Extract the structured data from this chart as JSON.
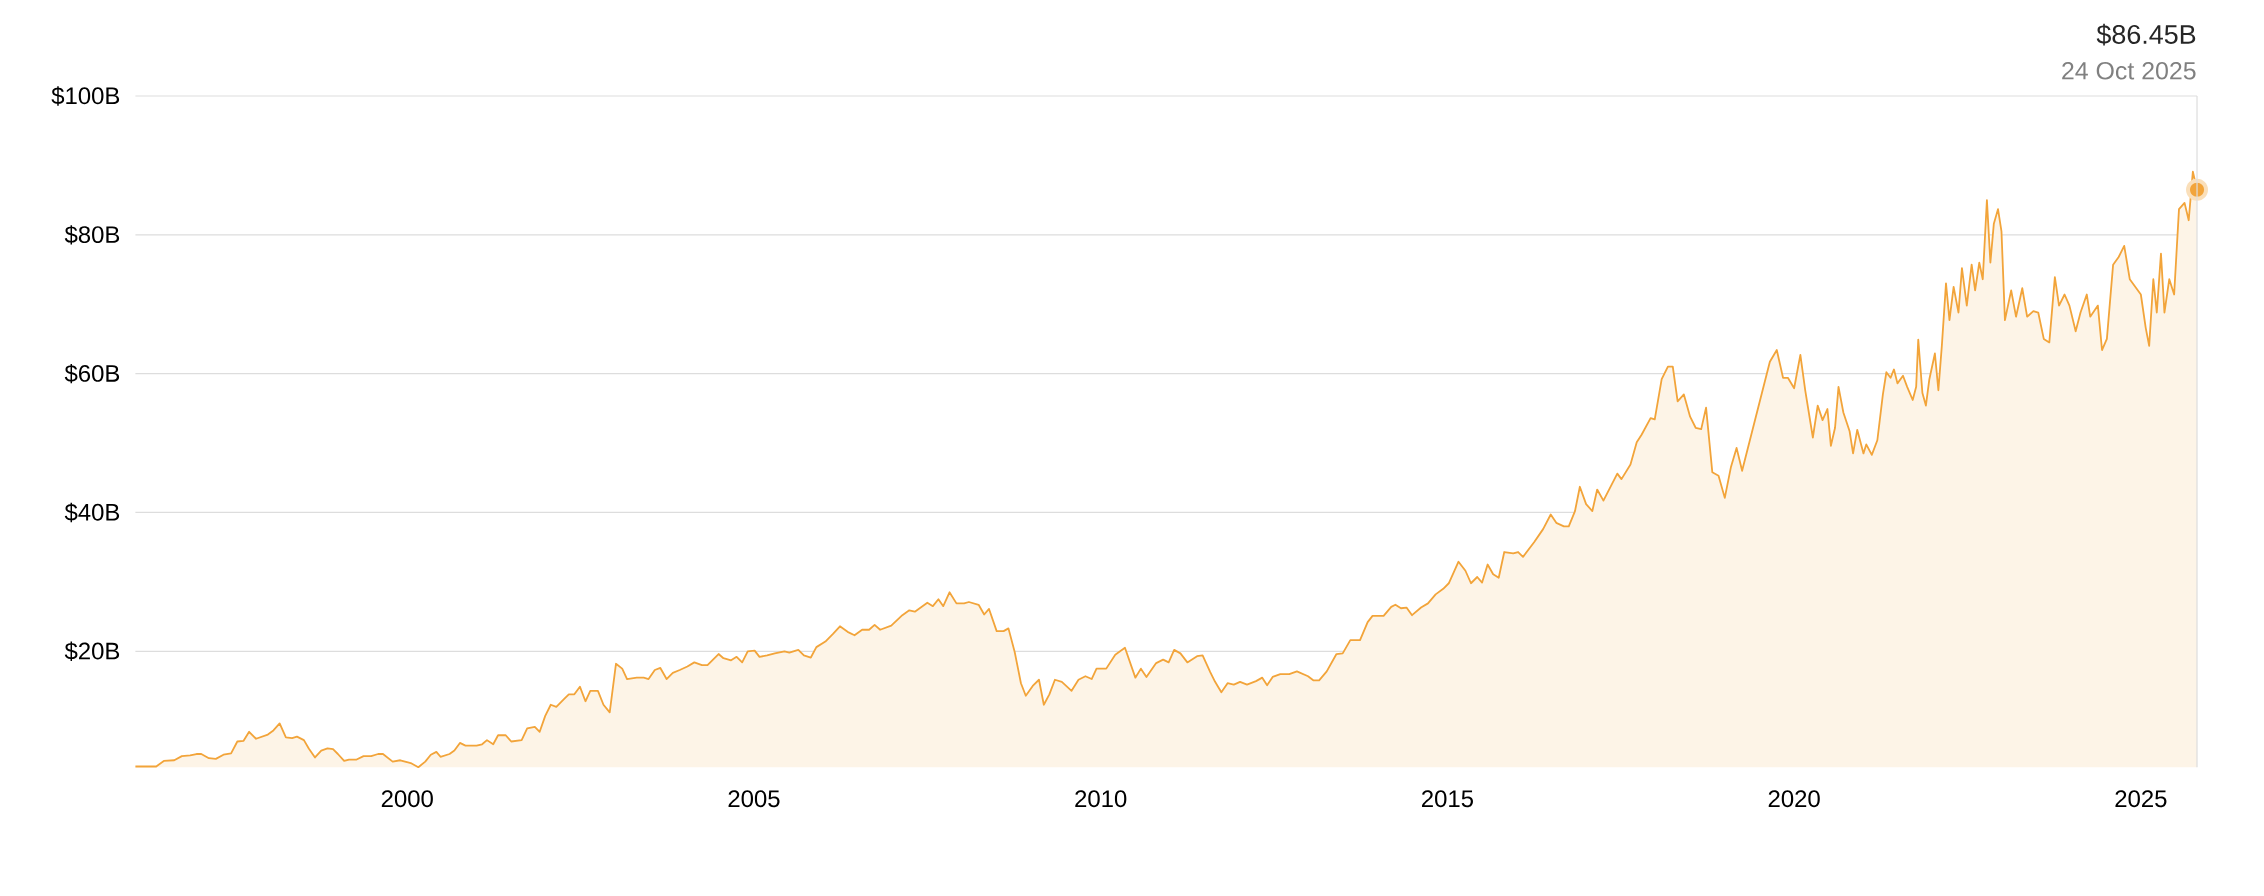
{
  "chart_data": {
    "type": "area",
    "color": "#f2a43a",
    "x": [
      1996.08,
      1996.38,
      1996.49,
      1996.64,
      1996.75,
      1996.87,
      1996.96,
      1997.03,
      1997.14,
      1997.24,
      1997.35,
      1997.46,
      1997.55,
      1997.64,
      1997.72,
      1997.82,
      1997.99,
      1998.07,
      1998.16,
      1998.25,
      1998.34,
      1998.41,
      1998.51,
      1998.58,
      1998.67,
      1998.76,
      1998.85,
      1998.93,
      1999.0,
      1999.09,
      1999.16,
      1999.27,
      1999.37,
      1999.48,
      1999.58,
      1999.65,
      1999.79,
      1999.9,
      2000.05,
      2000.16,
      2000.26,
      2000.34,
      2000.42,
      2000.48,
      2000.61,
      2000.68,
      2000.76,
      2000.84,
      2001.0,
      2001.08,
      2001.15,
      2001.24,
      2001.31,
      2001.42,
      2001.5,
      2001.65,
      2001.73,
      2001.84,
      2001.91,
      2001.99,
      2002.07,
      2002.15,
      2002.26,
      2002.33,
      2002.41,
      2002.49,
      2002.57,
      2002.64,
      2002.75,
      2002.83,
      2002.92,
      2003.01,
      2003.1,
      2003.17,
      2003.31,
      2003.41,
      2003.48,
      2003.57,
      2003.65,
      2003.74,
      2003.83,
      2003.93,
      2004.04,
      2004.14,
      2004.25,
      2004.33,
      2004.41,
      2004.49,
      2004.56,
      2004.67,
      2004.75,
      2004.83,
      2004.91,
      2005.01,
      2005.08,
      2005.19,
      2005.3,
      2005.44,
      2005.51,
      2005.64,
      2005.72,
      2005.82,
      2005.9,
      2006.03,
      2006.14,
      2006.24,
      2006.35,
      2006.45,
      2006.56,
      2006.66,
      2006.74,
      2006.82,
      2006.98,
      2007.14,
      2007.24,
      2007.32,
      2007.5,
      2007.58,
      2007.66,
      2007.73,
      2007.82,
      2007.92,
      2008.03,
      2008.1,
      2008.24,
      2008.32,
      2008.39,
      2008.5,
      2008.6,
      2008.67,
      2008.76,
      2008.85,
      2008.92,
      2009.02,
      2009.11,
      2009.18,
      2009.26,
      2009.34,
      2009.44,
      2009.58,
      2009.68,
      2009.78,
      2009.87,
      2009.94,
      2010.08,
      2010.21,
      2010.35,
      2010.5,
      2010.58,
      2010.66,
      2010.8,
      2010.9,
      2010.98,
      2011.06,
      2011.15,
      2011.25,
      2011.39,
      2011.47,
      2011.58,
      2011.65,
      2011.74,
      2011.83,
      2011.92,
      2012.01,
      2012.11,
      2012.24,
      2012.33,
      2012.4,
      2012.48,
      2012.59,
      2012.72,
      2012.83,
      2012.99,
      2013.07,
      2013.15,
      2013.26,
      2013.4,
      2013.49,
      2013.6,
      2013.74,
      2013.85,
      2013.92,
      2014.08,
      2014.19,
      2014.25,
      2014.33,
      2014.41,
      2014.49,
      2014.62,
      2014.72,
      2014.83,
      2014.94,
      2015.02,
      2015.16,
      2015.26,
      2015.34,
      2015.43,
      2015.5,
      2015.58,
      2015.66,
      2015.74,
      2015.82,
      2015.95,
      2016.02,
      2016.09,
      2016.25,
      2016.38,
      2016.49,
      2016.57,
      2016.68,
      2016.75,
      2016.84,
      2016.91,
      2017.0,
      2017.09,
      2017.16,
      2017.25,
      2017.45,
      2017.51,
      2017.64,
      2017.73,
      2017.8,
      2017.93,
      2017.99,
      2018.09,
      2018.18,
      2018.25,
      2018.32,
      2018.41,
      2018.5,
      2018.58,
      2018.66,
      2018.73,
      2018.82,
      2018.91,
      2019.0,
      2019.09,
      2019.17,
      2019.25,
      2019.65,
      2019.75,
      2019.84,
      2019.91,
      2020.0,
      2020.09,
      2020.16,
      2020.27,
      2020.34,
      2020.41,
      2020.48,
      2020.53,
      2020.59,
      2020.64,
      2020.71,
      2020.8,
      2020.85,
      2020.91,
      2021.0,
      2021.04,
      2021.12,
      2021.2,
      2021.28,
      2021.33,
      2021.39,
      2021.44,
      2021.49,
      2021.57,
      2021.63,
      2021.71,
      2021.76,
      2021.79,
      2021.85,
      2021.9,
      2021.95,
      2022.03,
      2022.08,
      2022.13,
      2022.19,
      2022.24,
      2022.3,
      2022.37,
      2022.42,
      2022.49,
      2022.56,
      2022.61,
      2022.67,
      2022.72,
      2022.78,
      2022.83,
      2022.88,
      2022.94,
      2022.99,
      2023.04,
      2023.13,
      2023.2,
      2023.29,
      2023.36,
      2023.45,
      2023.52,
      2023.6,
      2023.68,
      2023.76,
      2023.82,
      2023.9,
      2023.97,
      2024.06,
      2024.13,
      2024.22,
      2024.27,
      2024.38,
      2024.44,
      2024.51,
      2024.6,
      2024.68,
      2024.76,
      2024.84,
      2025.0,
      2025.07,
      2025.12,
      2025.18,
      2025.23,
      2025.29,
      2025.34,
      2025.41,
      2025.48,
      2025.55,
      2025.63,
      2025.69,
      2025.75,
      2025.81
    ],
    "values": [
      3.4,
      3.4,
      4.2,
      4.3,
      4.9,
      5.0,
      5.2,
      5.2,
      4.6,
      4.5,
      5.1,
      5.3,
      7.0,
      7.1,
      8.4,
      7.4,
      8.0,
      8.6,
      9.6,
      7.6,
      7.5,
      7.7,
      7.2,
      6.0,
      4.7,
      5.7,
      6.0,
      5.9,
      5.2,
      4.2,
      4.4,
      4.4,
      4.9,
      4.9,
      5.2,
      5.2,
      4.1,
      4.3,
      3.9,
      3.3,
      4.1,
      5.1,
      5.5,
      4.8,
      5.2,
      5.7,
      6.8,
      6.4,
      6.4,
      6.6,
      7.2,
      6.6,
      7.9,
      7.9,
      7.0,
      7.2,
      8.9,
      9.1,
      8.4,
      10.7,
      12.3,
      12.0,
      13.1,
      13.8,
      13.8,
      14.9,
      12.8,
      14.3,
      14.3,
      12.3,
      11.2,
      18.2,
      17.5,
      16.0,
      16.2,
      16.2,
      16.0,
      17.3,
      17.6,
      16.0,
      16.9,
      17.3,
      17.8,
      18.4,
      18.0,
      18.0,
      18.8,
      19.6,
      19.0,
      18.7,
      19.2,
      18.4,
      20.0,
      20.1,
      19.2,
      19.4,
      19.7,
      20.0,
      19.8,
      20.2,
      19.4,
      19.1,
      20.6,
      21.4,
      22.5,
      23.6,
      22.8,
      22.3,
      23.1,
      23.1,
      23.8,
      23.1,
      23.7,
      25.2,
      25.9,
      25.7,
      27.0,
      26.5,
      27.5,
      26.5,
      28.5,
      26.9,
      26.9,
      27.1,
      26.7,
      25.3,
      26.1,
      22.9,
      22.9,
      23.3,
      19.9,
      15.4,
      13.6,
      15.0,
      15.9,
      12.3,
      13.8,
      15.9,
      15.6,
      14.3,
      15.9,
      16.4,
      16.0,
      17.5,
      17.5,
      19.5,
      20.5,
      16.2,
      17.5,
      16.3,
      18.3,
      18.8,
      18.4,
      20.2,
      19.7,
      18.4,
      19.3,
      19.4,
      17.0,
      15.6,
      14.1,
      15.4,
      15.2,
      15.6,
      15.2,
      15.7,
      16.2,
      15.1,
      16.3,
      16.7,
      16.7,
      17.1,
      16.4,
      15.8,
      15.8,
      17.1,
      19.6,
      19.7,
      21.6,
      21.6,
      24.2,
      25.1,
      25.1,
      26.4,
      26.7,
      26.2,
      26.3,
      25.2,
      26.3,
      26.9,
      28.2,
      29.0,
      29.8,
      32.9,
      31.6,
      29.8,
      30.7,
      29.9,
      32.5,
      31.1,
      30.6,
      34.3,
      34.1,
      34.3,
      33.6,
      35.7,
      37.6,
      39.7,
      38.5,
      38.0,
      38.0,
      40.2,
      43.7,
      41.2,
      40.2,
      43.3,
      41.7,
      45.6,
      44.8,
      46.9,
      50.1,
      51.2,
      53.6,
      53.4,
      59.2,
      61.0,
      61.0,
      56.0,
      57.0,
      53.8,
      52.2,
      52.0,
      55.1,
      45.8,
      45.3,
      42.1,
      46.6,
      49.3,
      46.0,
      61.7,
      63.4,
      59.4,
      59.4,
      57.9,
      62.7,
      57.6,
      50.8,
      55.4,
      53.3,
      54.9,
      49.6,
      52.2,
      58.1,
      54.4,
      51.7,
      48.5,
      51.9,
      48.5,
      49.8,
      48.3,
      50.4,
      57.0,
      60.2,
      59.4,
      60.6,
      58.6,
      59.7,
      58.1,
      56.2,
      58.1,
      64.9,
      57.2,
      55.4,
      59.2,
      62.9,
      57.6,
      64.0,
      73.0,
      67.7,
      72.5,
      68.8,
      75.2,
      69.8,
      75.7,
      72.0,
      76.0,
      73.6,
      85.0,
      76.0,
      81.6,
      83.7,
      80.5,
      67.7,
      72.0,
      68.2,
      72.3,
      68.2,
      69.0,
      68.8,
      65.0,
      64.5,
      73.9,
      69.8,
      71.4,
      69.8,
      66.1,
      68.8,
      71.4,
      68.2,
      69.8,
      63.4,
      65.0,
      75.7,
      76.8,
      78.4,
      73.6,
      71.4,
      66.6,
      64.0,
      73.6,
      68.8,
      77.3,
      68.8,
      73.6,
      71.4,
      83.7,
      84.6,
      82.1,
      89.1,
      86.5
    ],
    "xlim": [
      1996.08,
      2025.81
    ],
    "xticks": [
      2000,
      2005,
      2010,
      2015,
      2020,
      2025
    ],
    "ylim": [
      3.3,
      100
    ],
    "yticks": [
      {
        "value": 20,
        "label": "$20B"
      },
      {
        "value": 40,
        "label": "$40B"
      },
      {
        "value": 60,
        "label": "$60B"
      },
      {
        "value": 80,
        "label": "$80B"
      },
      {
        "value": 100,
        "label": "$100B"
      }
    ],
    "grid": "y",
    "annotations": [
      "$86.45B",
      "24 Oct 2025"
    ]
  }
}
